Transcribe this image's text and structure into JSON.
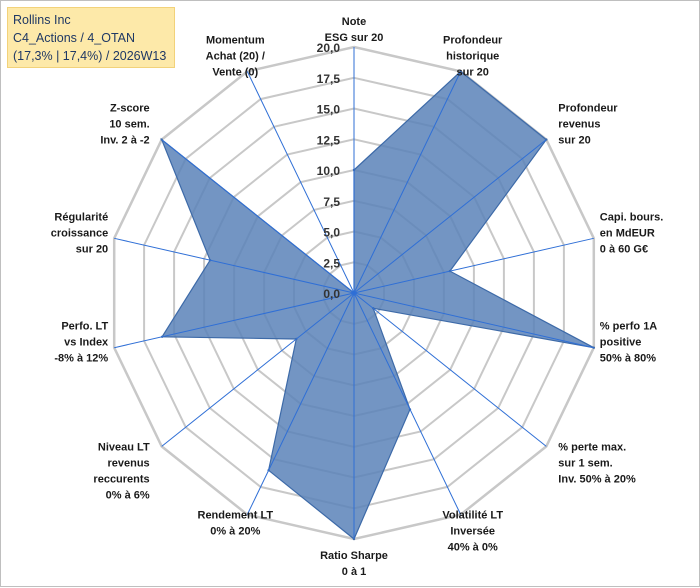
{
  "title_box": {
    "line1": "Rollins Inc",
    "line2": "C4_Actions / 4_OTAN",
    "line3": "(17,3% | 17,4%) / 2026W13"
  },
  "chart_data": {
    "type": "radar",
    "title": "Rollins Inc",
    "rlim": [
      0,
      20
    ],
    "ticks": [
      0,
      2.5,
      5,
      7.5,
      10,
      12.5,
      15,
      17.5,
      20
    ],
    "tick_labels": [
      "0,0",
      "2,5",
      "5,0",
      "7,5",
      "10,0",
      "12,5",
      "15,0",
      "17,5",
      "20,0"
    ],
    "categories": [
      [
        "Note",
        "ESG sur 20"
      ],
      [
        "Profondeur",
        "historique",
        "sur 20"
      ],
      [
        "Profondeur",
        "revenus",
        "sur 20"
      ],
      [
        "Capi. bours.",
        "en MdEUR",
        "0 à 60 G€"
      ],
      [
        "% perfo 1A",
        "positive",
        "50% à 80%"
      ],
      [
        "% perte max.",
        "sur 1 sem.",
        "Inv. 50% à 20%"
      ],
      [
        "Volatilité LT",
        "Inversée",
        "40% à 0%"
      ],
      [
        "Ratio Sharpe",
        "0 à 1"
      ],
      [
        "Rendement LT",
        "0% à 20%"
      ],
      [
        "Niveau LT",
        "revenus",
        "reccurents",
        "0% à 6%"
      ],
      [
        "Perfo. LT",
        "vs Index",
        "-8% à 12%"
      ],
      [
        "Régularité",
        "croissance",
        "sur 20"
      ],
      [
        "Z-score",
        "10 sem.",
        "Inv. 2 à -2"
      ],
      [
        "Momentum",
        "Achat (20) /",
        "Vente (0)"
      ]
    ],
    "series": [
      {
        "name": "Rollins Inc",
        "values": [
          10,
          20,
          20,
          8,
          20,
          2,
          10.5,
          20,
          16,
          6,
          16,
          12,
          20,
          0
        ],
        "color": "#5b83b8",
        "fill_opacity": 0.85,
        "stroke": "#3d6aa8"
      }
    ],
    "grid": true,
    "grid_color": "#c8c8c8",
    "spoke_color": "#2f6fd6"
  }
}
